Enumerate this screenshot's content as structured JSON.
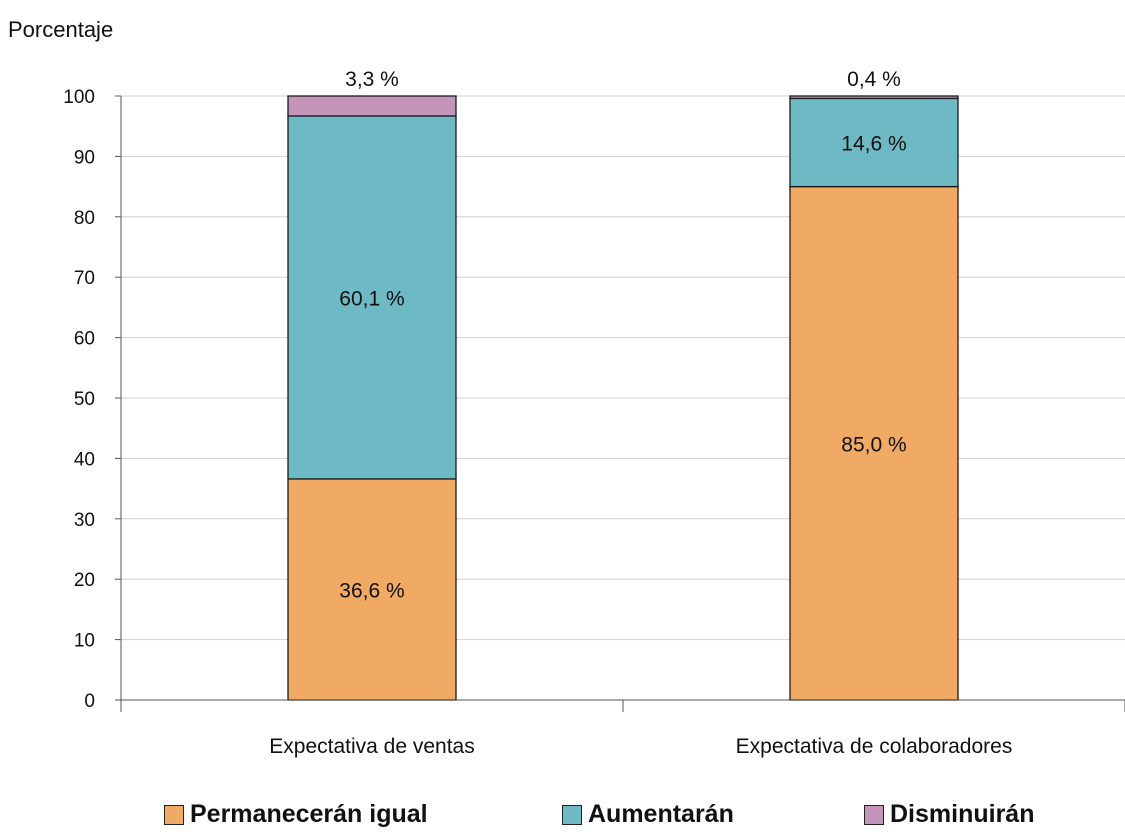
{
  "chart_data": {
    "type": "bar",
    "stacked": true,
    "ylabel": "Porcentaje",
    "ylim": [
      0,
      100
    ],
    "yticks": [
      0,
      10,
      20,
      30,
      40,
      50,
      60,
      70,
      80,
      90,
      100
    ],
    "grid": true,
    "legend_position": "bottom",
    "categories": [
      "Expectativa de ventas",
      "Expectativa de colaboradores"
    ],
    "series": [
      {
        "name": "Permanecerán igual",
        "color": "#F0AA63",
        "values": [
          36.6,
          85.0
        ],
        "labels": [
          "36,6 %",
          "85,0 %"
        ]
      },
      {
        "name": "Aumentarán",
        "color": "#6DB9C4",
        "values": [
          60.1,
          14.6
        ],
        "labels": [
          "60,1 %",
          "14,6 %"
        ]
      },
      {
        "name": "Disminuirán",
        "color": "#C495B8",
        "values": [
          3.3,
          0.4
        ],
        "labels": [
          "3,3 %",
          "0,4 %"
        ]
      }
    ]
  }
}
